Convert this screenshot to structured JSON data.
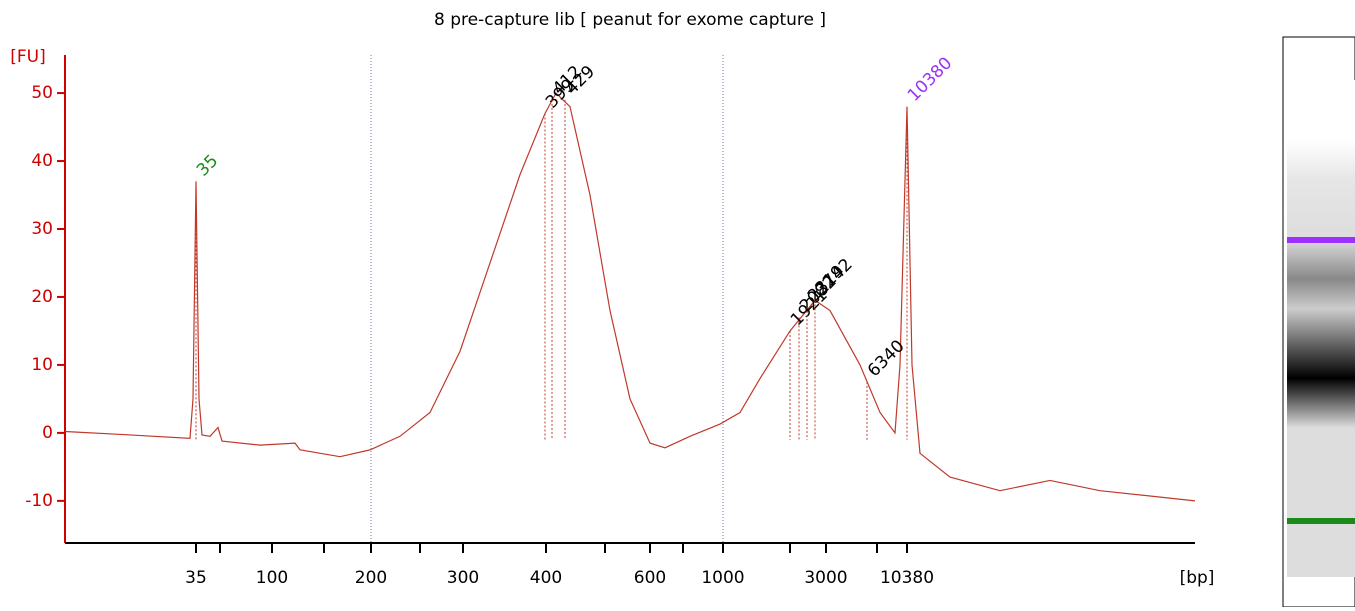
{
  "chart_data": {
    "type": "line",
    "title": "8 pre-capture lib  [ peanut for exome capture ]",
    "y_label": "[FU]",
    "x_label": "[bp]",
    "x": [
      0,
      6.5,
      12.5,
      12.8,
      13.1,
      13.4,
      13.7,
      14.5,
      15.3,
      15.7,
      19.5,
      23,
      23.5,
      27.5,
      30.5,
      33.5,
      36.5,
      39.5,
      42.5,
      45.5,
      48,
      49.1,
      50.5,
      52.5,
      54.5,
      56.5,
      58.5,
      60,
      62.5,
      65.5,
      67.5,
      69.5,
      72.5,
      75,
      76.5,
      79.5,
      81.5,
      83,
      83.5,
      84.2,
      84.7,
      85.5,
      88.5,
      93.5,
      98.5,
      103.5,
      113
    ],
    "series": [
      {
        "name": "8 pre-capture lib",
        "color": "#c0392b",
        "values": [
          0.2,
          -0.3,
          -0.8,
          5,
          37,
          5,
          -0.3,
          -0.5,
          0.8,
          -1.2,
          -1.8,
          -1.5,
          -2.5,
          -3.5,
          -2.5,
          -0.5,
          3,
          12,
          25,
          38,
          47,
          50,
          48,
          35,
          18,
          5,
          -1.5,
          -2.2,
          -0.5,
          1.3,
          3,
          8,
          15,
          19.5,
          18,
          10,
          3,
          0,
          10,
          48,
          10,
          -3,
          -6.5,
          -8.5,
          -7,
          -8.5,
          -10
        ]
      }
    ],
    "peaks": [
      {
        "label": "35",
        "x": 13.1,
        "y": 37,
        "color": "#1a8a1a"
      },
      {
        "label": "399",
        "x": 48,
        "y": 47,
        "color": "#000000"
      },
      {
        "label": "412",
        "x": 48.7,
        "y": 49,
        "color": "#000000"
      },
      {
        "label": "429",
        "x": 50,
        "y": 49,
        "color": "#000000"
      },
      {
        "label": "1921",
        "x": 72.5,
        "y": 15,
        "color": "#000000"
      },
      {
        "label": "2082",
        "x": 73.4,
        "y": 17,
        "color": "#000000"
      },
      {
        "label": "2319",
        "x": 74.2,
        "y": 18.5,
        "color": "#000000"
      },
      {
        "label": "2742",
        "x": 75,
        "y": 19.5,
        "color": "#000000"
      },
      {
        "label": "6340",
        "x": 80.2,
        "y": 7.5,
        "color": "#000000"
      },
      {
        "label": "10380",
        "x": 84.2,
        "y": 48,
        "color": "#9b30ff"
      }
    ],
    "xlim": [
      0,
      113
    ],
    "ylim": [
      -16.2,
      55.6
    ],
    "yticks": [
      -10,
      0,
      10,
      20,
      30,
      40,
      50
    ],
    "xticks": [
      {
        "value": 13.1,
        "label": "35"
      },
      {
        "value": 20.7,
        "label": "100"
      },
      {
        "value": 30.6,
        "label": "200"
      },
      {
        "value": 39.8,
        "label": "300"
      },
      {
        "value": 48.1,
        "label": "400"
      },
      {
        "value": 58.5,
        "label": "600"
      },
      {
        "value": 65.8,
        "label": "1000"
      },
      {
        "value": 76.1,
        "label": "3000"
      },
      {
        "value": 84.2,
        "label": "10380"
      }
    ],
    "minor_xticks": [
      15.5,
      25.9,
      35.5,
      54,
      61.8,
      72.5,
      81.2
    ],
    "dotted_ticks": [
      2,
      6
    ]
  }
}
